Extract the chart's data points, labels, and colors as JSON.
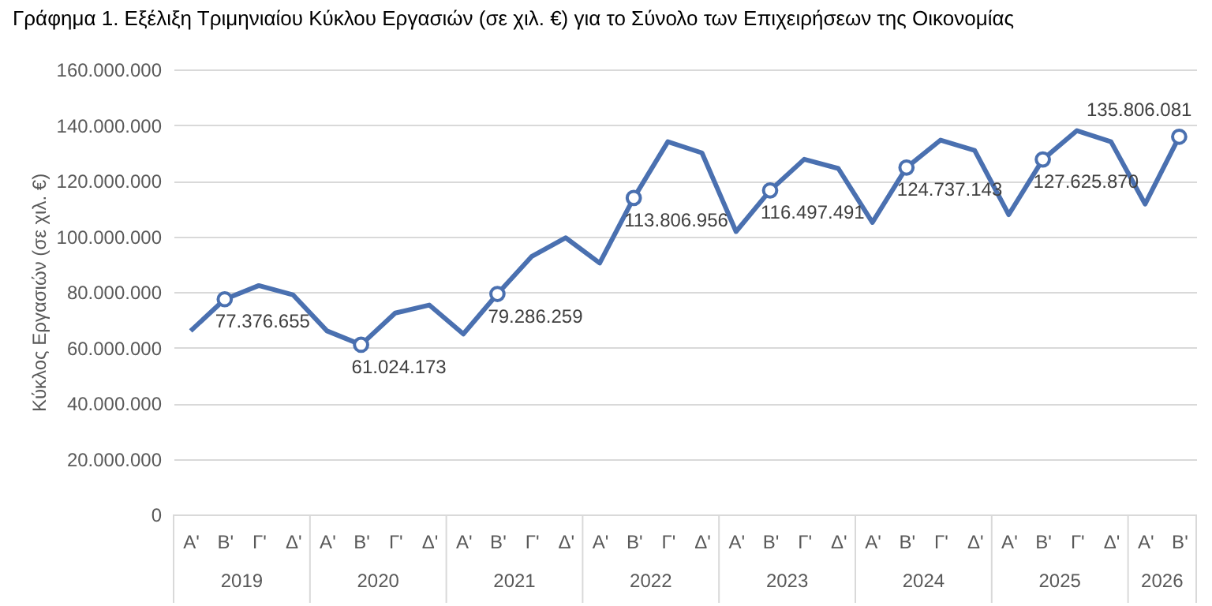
{
  "chart_data": {
    "type": "line",
    "title": "Γράφημα 1. Εξέλιξη Τριμηνιαίου Κύκλου Εργασιών (σε χιλ. €) για το Σύνολο των Επιχειρήσεων της Οικονομίας",
    "ylabel": "Κύκλος Εργασιών (σε χιλ. €)",
    "categories": [
      "Α'",
      "Β'",
      "Γ'",
      "Δ'",
      "Α'",
      "Β'",
      "Γ'",
      "Δ'",
      "Α'",
      "Β'",
      "Γ'",
      "Δ'",
      "Α'",
      "Β'",
      "Γ'",
      "Δ'",
      "Α'",
      "Β'",
      "Γ'",
      "Δ'",
      "Α'",
      "Β'",
      "Γ'",
      "Δ'",
      "Α'",
      "Β'",
      "Γ'",
      "Δ'",
      "Α'",
      "Β'"
    ],
    "annotations": [
      "2019",
      "2020",
      "2021",
      "2022",
      "2023",
      "2024",
      "2025",
      "2026"
    ],
    "series": [
      {
        "color": "#4a70b0",
        "values": [
          66000000,
          77376655,
          82300000,
          79000000,
          66000000,
          61024173,
          72400000,
          75300000,
          64900000,
          79286259,
          92700000,
          99500000,
          90400000,
          113806956,
          134000000,
          130000000,
          101700000,
          116497491,
          127700000,
          124400000,
          105000000,
          124737143,
          134600000,
          130900000,
          107800000,
          127625870,
          138000000,
          134000000,
          111600000,
          135806081
        ],
        "value_labels": [
          null,
          "77.376.655",
          null,
          null,
          null,
          "61.024.173",
          null,
          null,
          null,
          "79.286.259",
          null,
          null,
          null,
          "113.806.956",
          null,
          null,
          null,
          "116.497.491",
          null,
          null,
          null,
          "124.737.143",
          null,
          null,
          null,
          "127.625.870",
          null,
          null,
          null,
          "135.806.081"
        ]
      }
    ],
    "ylim": [
      0,
      160000000
    ],
    "yticks": [
      {
        "value": 0,
        "label": "0"
      },
      {
        "value": 20000000,
        "label": "20.000.000"
      },
      {
        "value": 40000000,
        "label": "40.000.000"
      },
      {
        "value": 60000000,
        "label": "60.000.000"
      },
      {
        "value": 80000000,
        "label": "80.000.000"
      },
      {
        "value": 100000000,
        "label": "100.000.000"
      },
      {
        "value": 120000000,
        "label": "120.000.000"
      },
      {
        "value": 140000000,
        "label": "140.000.000"
      },
      {
        "value": 160000000,
        "label": "160.000.000"
      }
    ],
    "grid": "y",
    "line_style": "solid"
  }
}
